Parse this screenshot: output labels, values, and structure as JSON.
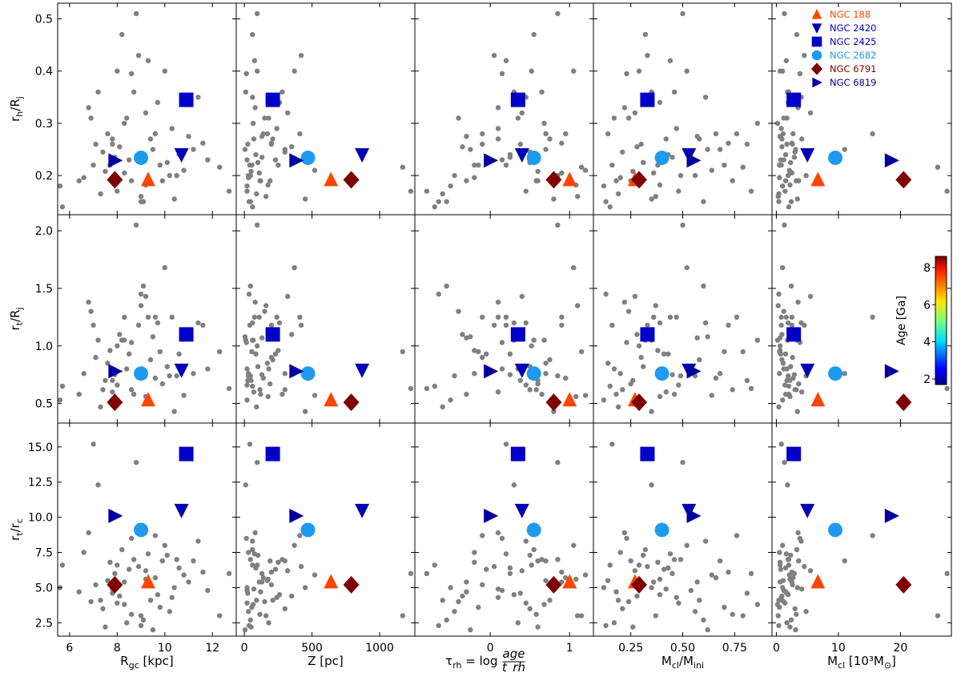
{
  "chart_data": {
    "type": "scatter",
    "description_grid": "3 rows x 5 columns of scatter panels sharing axes",
    "columns": [
      {
        "xlabel": "R_gc [kpc]",
        "xlabel_main": "R",
        "xlabel_sub": "gc",
        "xlabel_tail": " [kpc]",
        "xlim": [
          5.5,
          13.0
        ],
        "xticks": [
          6,
          8,
          10,
          12
        ],
        "xticklabels": [
          "6",
          "8",
          "10",
          "12"
        ]
      },
      {
        "xlabel": "Z [pc]",
        "xlabel_main": "Z [pc]",
        "xlabel_sub": "",
        "xlabel_tail": "",
        "xlim": [
          -60,
          1260
        ],
        "xticks": [
          0,
          500,
          1000
        ],
        "xticklabels": [
          "0",
          "500",
          "1000"
        ]
      },
      {
        "xlabel": "τ_rh = log age/t_rh",
        "xlabel_main": "τ",
        "xlabel_sub": "rh",
        "xlabel_tail": " = log",
        "xlabel_frac_num": "age",
        "xlabel_frac_den": "t_rh",
        "xlim": [
          -0.95,
          1.3
        ],
        "xticks": [
          0,
          1
        ],
        "xticklabels": [
          "0",
          "1"
        ]
      },
      {
        "xlabel": "M_cl/M_ini",
        "xlabel_main": "M",
        "xlabel_sub": "cl",
        "xlabel_tail": "/M",
        "xlabel_sub2": "ini",
        "xlim": [
          0.07,
          0.93
        ],
        "xticks": [
          0.25,
          0.5,
          0.75
        ],
        "xticklabels": [
          "0.25",
          "0.50",
          "0.75"
        ]
      },
      {
        "xlabel": "M_cl [10^3 M_⊙]",
        "xlabel_main": "M",
        "xlabel_sub": "cl",
        "xlabel_tail": " [10³M",
        "xlabel_sub2": "⊙",
        "xlabel_end": "]",
        "xlim": [
          -0.7,
          28.2
        ],
        "xticks": [
          0,
          10,
          20
        ],
        "xticklabels": [
          "0",
          "10",
          "20"
        ]
      }
    ],
    "rows": [
      {
        "ylabel": "r_h/R_j",
        "ylabel_main": "r",
        "ylabel_sub": "h",
        "ylabel_tail": "/R",
        "ylabel_sub2": "j",
        "ylim": [
          0.125,
          0.53
        ],
        "yticks": [
          0.2,
          0.3,
          0.4,
          0.5
        ],
        "yticklabels": [
          "0.2",
          "0.3",
          "0.4",
          "0.5"
        ]
      },
      {
        "ylabel": "r_t/R_j",
        "ylabel_main": "r",
        "ylabel_sub": "t",
        "ylabel_tail": "/R",
        "ylabel_sub2": "j",
        "ylim": [
          0.33,
          2.14
        ],
        "yticks": [
          0.5,
          1.0,
          1.5,
          2.0
        ],
        "yticklabels": [
          "0.5",
          "1.0",
          "1.5",
          "2.0"
        ]
      },
      {
        "ylabel": "r_t/r_c",
        "ylabel_main": "r",
        "ylabel_sub": "t",
        "ylabel_tail": "/r",
        "ylabel_sub2": "c",
        "ylim": [
          1.55,
          16.7
        ],
        "yticks": [
          2.5,
          5.0,
          7.5,
          10.0,
          12.5,
          15.0
        ],
        "yticklabels": [
          "2.5",
          "5.0",
          "7.5",
          "10.0",
          "12.5",
          "15.0"
        ]
      }
    ],
    "highlighted_clusters": [
      {
        "name": "NGC 188",
        "marker": "triangle-up",
        "color": "#ff4500",
        "age_ga": 7.0,
        "rgc": 9.3,
        "z": 640,
        "tau": 1.0,
        "mfrac": 0.27,
        "mcl": 6.7,
        "rh_rj": 0.192,
        "rt_rj": 0.53,
        "rt_rc": 5.4
      },
      {
        "name": "NGC 2420",
        "marker": "triangle-down",
        "color": "#0000b4",
        "age_ga": 2.2,
        "rgc": 10.7,
        "z": 870,
        "tau": 0.4,
        "mfrac": 0.53,
        "mcl": 5.0,
        "rh_rj": 0.24,
        "rt_rj": 0.79,
        "rt_rc": 10.5
      },
      {
        "name": "NGC 2425",
        "marker": "square",
        "color": "#0000c8",
        "age_ga": 2.4,
        "rgc": 10.9,
        "z": 210,
        "tau": 0.35,
        "mfrac": 0.33,
        "mcl": 2.8,
        "rh_rj": 0.345,
        "rt_rj": 1.1,
        "rt_rc": 14.5
      },
      {
        "name": "NGC 2682",
        "marker": "circle",
        "color": "#1e9bef",
        "age_ga": 3.8,
        "rgc": 9.0,
        "z": 470,
        "tau": 0.55,
        "mfrac": 0.4,
        "mcl": 9.5,
        "rh_rj": 0.234,
        "rt_rj": 0.76,
        "rt_rc": 9.1
      },
      {
        "name": "NGC 6791",
        "marker": "diamond",
        "color": "#7f0000",
        "age_ga": 8.3,
        "rgc": 7.9,
        "z": 790,
        "tau": 0.8,
        "mfrac": 0.29,
        "mcl": 20.5,
        "rh_rj": 0.192,
        "rt_rj": 0.51,
        "rt_rc": 5.2
      },
      {
        "name": "NGC 6819",
        "marker": "triangle-right",
        "color": "#0000a0",
        "age_ga": 2.0,
        "rgc": 7.9,
        "z": 380,
        "tau": 0.0,
        "mfrac": 0.55,
        "mcl": 18.5,
        "rh_rj": 0.229,
        "rt_rj": 0.78,
        "rt_rc": 10.1
      }
    ],
    "background_points_color": "#808080",
    "background_points": [
      {
        "rgc": 5.6,
        "z": 20,
        "tau": -0.5,
        "mfrac": 0.12,
        "mcl": 1.0,
        "rh_rj": 0.18,
        "rt_rj": 0.53,
        "rt_rc": 5.0
      },
      {
        "rgc": 5.7,
        "z": 60,
        "tau": -0.7,
        "mfrac": 0.15,
        "mcl": 2.0,
        "rh_rj": 0.14,
        "rt_rj": 0.65,
        "rt_rc": 6.6
      },
      {
        "rgc": 6.4,
        "z": 120,
        "tau": -0.3,
        "mfrac": 0.18,
        "mcl": 1.5,
        "rh_rj": 0.19,
        "rt_rj": 0.58,
        "rt_rc": 4.7
      },
      {
        "rgc": 6.6,
        "z": 30,
        "tau": -0.2,
        "mfrac": 0.2,
        "mcl": 0.5,
        "rh_rj": 0.196,
        "rt_rj": 0.76,
        "rt_rc": 7.5
      },
      {
        "rgc": 6.8,
        "z": 80,
        "tau": 0.1,
        "mfrac": 0.22,
        "mcl": 3.5,
        "rh_rj": 0.33,
        "rt_rj": 1.38,
        "rt_rc": 8.9
      },
      {
        "rgc": 6.9,
        "z": 150,
        "tau": -0.4,
        "mfrac": 0.24,
        "mcl": 1.2,
        "rh_rj": 0.31,
        "rt_rj": 1.3,
        "rt_rc": 4.0
      },
      {
        "rgc": 7.0,
        "z": 40,
        "tau": 0.2,
        "mfrac": 0.16,
        "mcl": 0.8,
        "rh_rj": 0.22,
        "rt_rj": 1.18,
        "rt_rc": 15.2
      },
      {
        "rgc": 7.1,
        "z": 200,
        "tau": -0.1,
        "mfrac": 0.3,
        "mcl": 2.6,
        "rh_rj": 0.26,
        "rt_rj": 0.9,
        "rt_rc": 5.2
      },
      {
        "rgc": 7.2,
        "z": 10,
        "tau": 0.3,
        "mfrac": 0.35,
        "mcl": 1.8,
        "rh_rj": 0.36,
        "rt_rj": 1.05,
        "rt_rc": 12.3
      },
      {
        "rgc": 7.3,
        "z": 90,
        "tau": -0.6,
        "mfrac": 0.19,
        "mcl": 0.4,
        "rh_rj": 0.165,
        "rt_rj": 0.47,
        "rt_rc": 4.1
      },
      {
        "rgc": 7.4,
        "z": 300,
        "tau": 0.5,
        "mfrac": 0.21,
        "mcl": 3.0,
        "rh_rj": 0.245,
        "rt_rj": 0.62,
        "rt_rc": 3.5
      },
      {
        "rgc": 7.5,
        "z": 50,
        "tau": 0.6,
        "mfrac": 0.26,
        "mcl": 2.2,
        "rh_rj": 0.208,
        "rt_rj": 0.7,
        "rt_rc": 2.2
      },
      {
        "rgc": 7.6,
        "z": 170,
        "tau": 0.7,
        "mfrac": 0.14,
        "mcl": 1.1,
        "rh_rj": 0.28,
        "rt_rj": 0.85,
        "rt_rc": 5.5
      },
      {
        "rgc": 7.7,
        "z": 250,
        "tau": -0.2,
        "mfrac": 0.38,
        "mcl": 0.6,
        "rh_rj": 0.22,
        "rt_rj": 0.96,
        "rt_rc": 6.8
      },
      {
        "rgc": 7.8,
        "z": 70,
        "tau": 0.1,
        "mfrac": 0.42,
        "mcl": 4.1,
        "rh_rj": 0.27,
        "rt_rj": 0.6,
        "rt_rc": 4.9
      },
      {
        "rgc": 7.9,
        "z": 130,
        "tau": 0.25,
        "mfrac": 0.45,
        "mcl": 2.9,
        "rh_rj": 0.235,
        "rt_rj": 0.75,
        "rt_rc": 6.0
      },
      {
        "rgc": 8.0,
        "z": 20,
        "tau": 0.45,
        "mfrac": 0.48,
        "mcl": 1.4,
        "rh_rj": 0.17,
        "rt_rj": 0.66,
        "rt_rc": 3.9
      },
      {
        "rgc": 8.1,
        "z": 350,
        "tau": -0.35,
        "mfrac": 0.28,
        "mcl": 0.9,
        "rh_rj": 0.255,
        "rt_rj": 1.1,
        "rt_rc": 4.4
      },
      {
        "rgc": 8.2,
        "z": 60,
        "tau": 0.55,
        "mfrac": 0.32,
        "mcl": 3.3,
        "rh_rj": 0.47,
        "rt_rj": 1.05,
        "rt_rc": 7.7
      },
      {
        "rgc": 8.3,
        "z": 110,
        "tau": 0.9,
        "mfrac": 0.36,
        "mcl": 2.5,
        "rh_rj": 0.205,
        "rt_rj": 1.25,
        "rt_rc": 5.4
      },
      {
        "rgc": 8.4,
        "z": 180,
        "tau": 0.35,
        "mfrac": 0.17,
        "mcl": 1.7,
        "rh_rj": 0.31,
        "rt_rj": 0.8,
        "rt_rc": 2.5
      },
      {
        "rgc": 8.5,
        "z": 230,
        "tau": -0.05,
        "mfrac": 0.41,
        "mcl": 0.7,
        "rh_rj": 0.23,
        "rt_rj": 0.93,
        "rt_rc": 6.3
      },
      {
        "rgc": 8.6,
        "z": 15,
        "tau": 0.15,
        "mfrac": 0.23,
        "mcl": 3.8,
        "rh_rj": 0.395,
        "rt_rj": 1.03,
        "rt_rc": 8.5
      },
      {
        "rgc": 8.7,
        "z": 280,
        "tau": 0.65,
        "mfrac": 0.46,
        "mcl": 2.0,
        "rh_rj": 0.36,
        "rt_rj": 0.58,
        "rt_rc": 7.0
      },
      {
        "rgc": 8.8,
        "z": 95,
        "tau": 0.85,
        "mfrac": 0.5,
        "mcl": 1.3,
        "rh_rj": 0.51,
        "rt_rj": 2.05,
        "rt_rc": 13.9
      },
      {
        "rgc": 8.9,
        "z": 420,
        "tau": 0.05,
        "mfrac": 0.33,
        "mcl": 4.5,
        "rh_rj": 0.43,
        "rt_rj": 1.18,
        "rt_rc": 6.5
      },
      {
        "rgc": 9.0,
        "z": 160,
        "tau": 1.1,
        "mfrac": 0.37,
        "mcl": 0.3,
        "rh_rj": 0.16,
        "rt_rj": 1.35,
        "rt_rc": 3.0
      },
      {
        "rgc": 9.1,
        "z": 45,
        "tau": -0.55,
        "mfrac": 0.6,
        "mcl": 2.4,
        "rh_rj": 0.15,
        "rt_rj": 1.52,
        "rt_rc": 2.7
      },
      {
        "rgc": 9.2,
        "z": 320,
        "tau": 0.4,
        "mfrac": 0.27,
        "mcl": 5.5,
        "rh_rj": 0.32,
        "rt_rj": 1.43,
        "rt_rc": 6.2
      },
      {
        "rgc": 9.3,
        "z": 75,
        "tau": 0.2,
        "mfrac": 0.44,
        "mcl": 1.6,
        "rh_rj": 0.42,
        "rt_rj": 1.25,
        "rt_rc": 7.4
      },
      {
        "rgc": 9.4,
        "z": 210,
        "tau": 0.75,
        "mfrac": 0.58,
        "mcl": 0.9,
        "rh_rj": 0.27,
        "rt_rj": 0.88,
        "rt_rc": 4.1
      },
      {
        "rgc": 9.5,
        "z": 5,
        "tau": -0.25,
        "mfrac": 0.62,
        "mcl": 3.1,
        "rh_rj": 0.25,
        "rt_rj": 1.08,
        "rt_rc": 2.0
      },
      {
        "rgc": 9.6,
        "z": 140,
        "tau": 0.95,
        "mfrac": 0.66,
        "mcl": 2.7,
        "rh_rj": 0.28,
        "rt_rj": 0.72,
        "rt_rc": 5.7
      },
      {
        "rgc": 9.7,
        "z": 260,
        "tau": 0.3,
        "mfrac": 0.39,
        "mcl": 1.9,
        "rh_rj": 0.34,
        "rt_rj": 1.2,
        "rt_rc": 4.5
      },
      {
        "rgc": 9.8,
        "z": 55,
        "tau": -0.15,
        "mfrac": 0.7,
        "mcl": 0.5,
        "rh_rj": 0.22,
        "rt_rj": 0.95,
        "rt_rc": 3.6
      },
      {
        "rgc": 9.9,
        "z": 190,
        "tau": 0.6,
        "mfrac": 0.25,
        "mcl": 3.6,
        "rh_rj": 0.19,
        "rt_rj": 0.67,
        "rt_rc": 6.9
      },
      {
        "rgc": 10.0,
        "z": 370,
        "tau": 1.05,
        "mfrac": 0.52,
        "mcl": 1.0,
        "rh_rj": 0.4,
        "rt_rj": 1.68,
        "rt_rc": 8.0
      },
      {
        "rgc": 10.1,
        "z": 100,
        "tau": 0.5,
        "mfrac": 0.31,
        "mcl": 2.3,
        "rh_rj": 0.225,
        "rt_rj": 0.82,
        "rt_rc": 7.3
      },
      {
        "rgc": 10.2,
        "z": 30,
        "tau": -0.45,
        "mfrac": 0.56,
        "mcl": 4.8,
        "rh_rj": 0.2,
        "rt_rj": 0.74,
        "rt_rc": 3.3
      },
      {
        "rgc": 10.3,
        "z": 240,
        "tau": 0.1,
        "mfrac": 0.47,
        "mcl": 0.8,
        "rh_rj": 0.29,
        "rt_rj": 1.25,
        "rt_rc": 4.3
      },
      {
        "rgc": 10.4,
        "z": 450,
        "tau": 0.8,
        "mfrac": 0.35,
        "mcl": 3.4,
        "rh_rj": 0.155,
        "rt_rj": 0.43,
        "rt_rc": 5.0
      },
      {
        "rgc": 10.6,
        "z": 85,
        "tau": 0.25,
        "mfrac": 0.43,
        "mcl": 1.5,
        "rh_rj": 0.24,
        "rt_rj": 0.93,
        "rt_rc": 6.4
      },
      {
        "rgc": 10.8,
        "z": 520,
        "tau": 1.2,
        "mfrac": 0.64,
        "mcl": 2.1,
        "rh_rj": 0.21,
        "rt_rj": 0.57,
        "rt_rc": 5.9
      },
      {
        "rgc": 11.0,
        "z": 130,
        "tau": -0.3,
        "mfrac": 0.57,
        "mcl": 0.6,
        "rh_rj": 0.275,
        "rt_rj": 1.07,
        "rt_rc": 5.4
      },
      {
        "rgc": 11.2,
        "z": 300,
        "tau": 0.7,
        "mfrac": 0.68,
        "mcl": 11.0,
        "rh_rj": 0.25,
        "rt_rj": 0.76,
        "rt_rc": 6.9
      },
      {
        "rgc": 11.4,
        "z": 60,
        "tau": 0.45,
        "mfrac": 0.61,
        "mcl": 4.0,
        "rh_rj": 0.35,
        "rt_rj": 1.2,
        "rt_rc": 8.3
      },
      {
        "rgc": 11.6,
        "z": 200,
        "tau": 0.9,
        "mfrac": 0.72,
        "mcl": 2.5,
        "rh_rj": 0.262,
        "rt_rj": 1.18,
        "rt_rc": 6.1
      },
      {
        "rgc": 11.8,
        "z": 20,
        "tau": 0.15,
        "mfrac": 0.54,
        "mcl": 1.2,
        "rh_rj": 0.23,
        "rt_rj": 0.8,
        "rt_rc": 4.8
      },
      {
        "rgc": 12.3,
        "z": 1170,
        "tau": 1.15,
        "mfrac": 0.79,
        "mcl": 26.0,
        "rh_rj": 0.216,
        "rt_rj": 0.95,
        "rt_rc": 3.0
      },
      {
        "rgc": 12.7,
        "z": 1230,
        "tau": -0.8,
        "mfrac": 0.83,
        "mcl": 27.5,
        "rh_rj": 0.17,
        "rt_rj": 0.63,
        "rt_rc": 6.0
      },
      {
        "rgc": 9.0,
        "z": 35,
        "tau": -0.65,
        "mfrac": 0.13,
        "mcl": 0.4,
        "rh_rj": 0.15,
        "rt_rj": 1.45,
        "rt_rc": 2.3
      },
      {
        "rgc": 8.6,
        "z": 115,
        "tau": 0.58,
        "mfrac": 0.74,
        "mcl": 3.2,
        "rh_rj": 0.19,
        "rt_rj": 0.62,
        "rt_rc": 3.1
      },
      {
        "rgc": 7.8,
        "z": 25,
        "tau": 0.38,
        "mfrac": 0.81,
        "mcl": 1.7,
        "rh_rj": 0.26,
        "rt_rj": 0.7,
        "rt_rc": 4.6
      },
      {
        "rgc": 9.6,
        "z": 410,
        "tau": -0.1,
        "mfrac": 0.76,
        "mcl": 15.5,
        "rh_rj": 0.28,
        "rt_rj": 1.25,
        "rt_rc": 8.7
      },
      {
        "rgc": 8.3,
        "z": 65,
        "tau": 0.68,
        "mfrac": 0.86,
        "mcl": 0.2,
        "rh_rj": 0.3,
        "rt_rj": 1.05,
        "rt_rc": 3.8
      },
      {
        "rgc": 9.2,
        "z": 175,
        "tau": 1.08,
        "mfrac": 0.39,
        "mcl": 2.2,
        "rh_rj": 0.182,
        "rt_rj": 0.56,
        "rt_rc": 5.6
      },
      {
        "rgc": 8.0,
        "z": 95,
        "tau": 0.52,
        "mfrac": 0.29,
        "mcl": 0.6,
        "rh_rj": 0.4,
        "rt_rj": 1.0,
        "rt_rc": 6.6
      },
      {
        "rgc": 10.5,
        "z": 45,
        "tau": 0.85,
        "mfrac": 0.49,
        "mcl": 1.9,
        "rh_rj": 0.2,
        "rt_rj": 0.74,
        "rt_rc": 7.0
      }
    ],
    "legend": {
      "placement": "top-right of top-right panel",
      "entries": [
        "NGC 188",
        "NGC 2420",
        "NGC 2425",
        "NGC 2682",
        "NGC 6791",
        "NGC 6819"
      ]
    },
    "colorbar": {
      "label": "Age [Ga]",
      "range": [
        1.7,
        8.6
      ],
      "ticks": [
        2,
        4,
        6,
        8
      ],
      "ticklabels": [
        "2",
        "4",
        "6",
        "8"
      ],
      "colormap": "jet",
      "placement": "inside middle-right panel"
    }
  }
}
